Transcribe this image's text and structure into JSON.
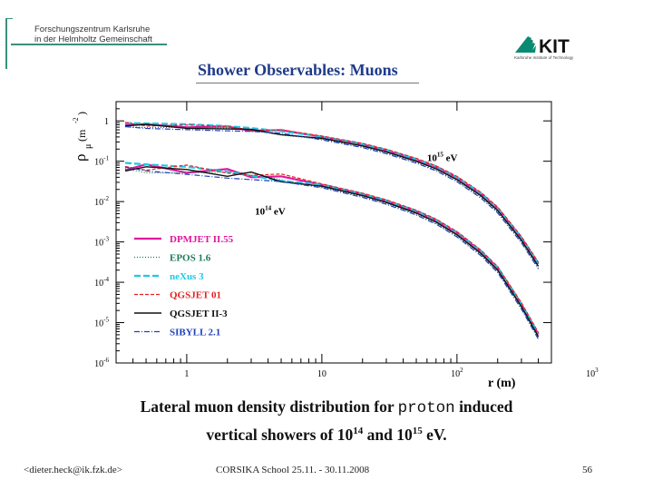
{
  "header": {
    "institution_line1": "Forschungszentrum Karlsruhe",
    "institution_line2": "in der Helmholtz Gemeinschaft",
    "logo_text": "KIT",
    "logo_subtitle": "Karlsruhe Institute of Technology"
  },
  "slide_title": "Shower Observables: Muons",
  "caption": {
    "line1_a": "Lateral muon density distribution for ",
    "line1_italic": "proton",
    "line1_b": " induced",
    "line2_a": "vertical showers of 10",
    "line2_sup1": "14",
    "line2_b": " and 10",
    "line2_sup2": "15",
    "line2_c": " eV."
  },
  "footer": {
    "email": "<dieter.heck@ik.fzk.de>",
    "event": "CORSIKA School 25.11. - 30.11.2008",
    "page": "56"
  },
  "colors": {
    "title": "#1f3b8a",
    "dpmjet": "#e0179b",
    "epos": "#1f7a5a",
    "nexus": "#1ec8e6",
    "qgsjet01": "#e52222",
    "qgsjet2": "#111111",
    "sibyll": "#1f3fbf"
  },
  "chart_data": {
    "type": "line",
    "xscale": "log",
    "yscale": "log",
    "xlim": [
      0.3,
      500
    ],
    "ylim": [
      1e-06,
      3
    ],
    "xlabel": "r  (m)",
    "ylabel_main": "ρ",
    "ylabel_sub": "μ",
    "ylabel_unit": "(m",
    "ylabel_unit_sup": "-2",
    "ylabel_unit_close": ")",
    "x_ticks": [
      {
        "value": 1,
        "base": "1",
        "sup": ""
      },
      {
        "value": 10,
        "base": "10",
        "sup": ""
      },
      {
        "value": 100,
        "base": "10",
        "sup": "2"
      },
      {
        "value": 1000,
        "base": "10",
        "sup": "3"
      }
    ],
    "y_ticks": [
      {
        "value": 1,
        "base": "1",
        "sup": ""
      },
      {
        "value": 0.1,
        "base": "10",
        "sup": "-1"
      },
      {
        "value": 0.01,
        "base": "10",
        "sup": "-2"
      },
      {
        "value": 0.001,
        "base": "10",
        "sup": "-3"
      },
      {
        "value": 0.0001,
        "base": "10",
        "sup": "-4"
      },
      {
        "value": 1e-05,
        "base": "10",
        "sup": "-5"
      },
      {
        "value": 1e-06,
        "base": "10",
        "sup": "-6"
      }
    ],
    "annotations": [
      {
        "base": "10",
        "sup": "15",
        "unit": " eV",
        "x": 60,
        "y": 0.1
      },
      {
        "base": "10",
        "sup": "14",
        "unit": " eV",
        "x": 3.2,
        "y": 0.0047
      }
    ],
    "models": [
      {
        "name": "DPMJET II.55",
        "color_key": "dpmjet",
        "style": "solid-thick"
      },
      {
        "name": "EPOS 1.6",
        "color_key": "epos",
        "style": "dotted"
      },
      {
        "name": "neXus 3",
        "color_key": "nexus",
        "style": "dash-thick"
      },
      {
        "name": "QGSJET 01",
        "color_key": "qgsjet01",
        "style": "dashed"
      },
      {
        "name": "QGSJET II-3",
        "color_key": "qgsjet2",
        "style": "solid"
      },
      {
        "name": "SIBYLL 2.1",
        "color_key": "sibyll",
        "style": "dashdot"
      }
    ],
    "series": [
      {
        "energy": "1e15 eV",
        "r": [
          0.35,
          0.5,
          1,
          2,
          3,
          5,
          10,
          20,
          30,
          50,
          70,
          100,
          150,
          200,
          300,
          400
        ],
        "density": [
          0.8,
          0.75,
          0.7,
          0.63,
          0.58,
          0.5,
          0.37,
          0.24,
          0.17,
          0.1,
          0.065,
          0.035,
          0.014,
          0.006,
          0.0011,
          0.00025
        ]
      },
      {
        "energy": "1e14 eV",
        "r": [
          0.35,
          0.5,
          1,
          2,
          3,
          5,
          10,
          20,
          30,
          50,
          70,
          100,
          150,
          200,
          300,
          400
        ],
        "density": [
          0.07,
          0.065,
          0.06,
          0.05,
          0.044,
          0.035,
          0.024,
          0.014,
          0.0095,
          0.0052,
          0.0031,
          0.0015,
          0.00052,
          0.0002,
          2.5e-05,
          4.5e-06
        ]
      }
    ]
  }
}
